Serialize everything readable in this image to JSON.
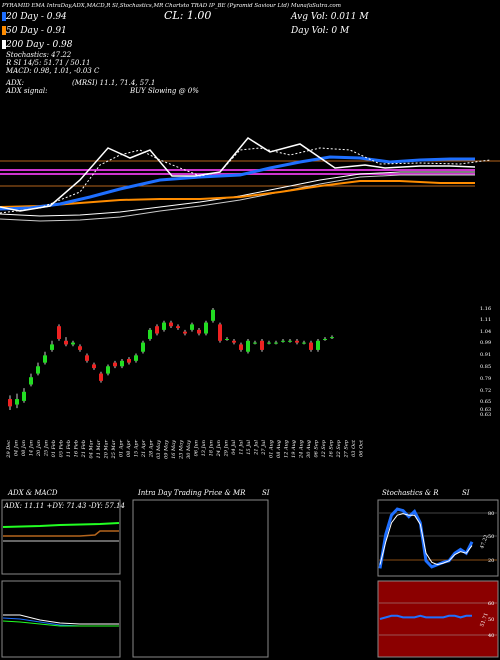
{
  "header": {
    "title_line": "PYRAMID EMA IntraDay,ADX,MACD,R SI,Stochastics,MR Chartsto TRAD IP_BE (Pyramid Saviour Ltd) MunafaSutra.com",
    "ema20": "20 Day - 0.94",
    "ema50": "50 Day - 0.91",
    "ema200": "200 Day - 0.98",
    "close": "CL: 1.00",
    "avg_vol": "Avg Vol: 0.011 M",
    "day_vol": "Day Vol: 0 M",
    "stochastics": "Stochastics: 47.22",
    "rsi": "R SI 14/5: 51.71 / 50.11",
    "macd": "MACD: 0.98, 1.01, -0.03 C",
    "adx": "ADX:",
    "mrsi": "(MRSI) 11.1, 71.4, 57.1",
    "adx_signal": "ADX signal:",
    "buy_slowing": "BUY Slowing @ 0%"
  },
  "colors": {
    "background": "#000000",
    "ema20": "#1e6fff",
    "ema50": "#ff8c00",
    "ema200": "#ffffff",
    "magenta": "#cc33cc",
    "brown": "#b5651d",
    "bull": "#22dd22",
    "bear": "#ee2222",
    "panel_border": "#888888",
    "rsi_band": "#8b0000"
  },
  "chart_data": [
    {
      "type": "candlestick",
      "title": "IntraDay price with EMA",
      "price_axis_ticks": [
        "1.16",
        "1.11",
        "1.04",
        "0.99",
        "0.91",
        "0.85",
        "0.79",
        "0.72",
        "0.65",
        "0.63",
        "0.63"
      ],
      "x_labels": [
        "29 Dec",
        "04 Jan",
        "08 Jan",
        "14 Jan",
        "20 Jan",
        "25 Jan",
        "01 Feb",
        "05 Feb",
        "11 Feb",
        "16 Feb",
        "21 Feb",
        "04 Mar",
        "11 Mar",
        "20 Mar",
        "25 Mar",
        "01 Apr",
        "08 Apr",
        "15 Apr",
        "21 Apr",
        "28 Apr",
        "03 May",
        "09 May",
        "16 May",
        "23 May",
        "30 May",
        "06 Jun",
        "13 Jun",
        "18 Jun",
        "24 Jun",
        "29 Jun",
        "04 Jul",
        "11 Jul",
        "15 Jul",
        "21 Jul",
        "27 Jul",
        "01 Aug",
        "08 Aug",
        "12 Aug",
        "19 Aug",
        "24 Aug",
        "30 Aug",
        "06 Sep",
        "12 Sep",
        "16 Sep",
        "22 Sep",
        "27 Sep",
        "03 Oct",
        "06 Oct"
      ],
      "candles": [
        {
          "o": 0.66,
          "c": 0.62,
          "h": 0.68,
          "l": 0.6
        },
        {
          "o": 0.63,
          "c": 0.66,
          "h": 0.69,
          "l": 0.61
        },
        {
          "o": 0.65,
          "c": 0.7,
          "h": 0.72,
          "l": 0.64
        },
        {
          "o": 0.74,
          "c": 0.78,
          "h": 0.8,
          "l": 0.73
        },
        {
          "o": 0.8,
          "c": 0.84,
          "h": 0.86,
          "l": 0.79
        },
        {
          "o": 0.86,
          "c": 0.9,
          "h": 0.92,
          "l": 0.85
        },
        {
          "o": 0.93,
          "c": 0.96,
          "h": 0.98,
          "l": 0.92
        },
        {
          "o": 1.06,
          "c": 0.99,
          "h": 1.07,
          "l": 0.98
        },
        {
          "o": 0.98,
          "c": 0.96,
          "h": 1.0,
          "l": 0.95
        },
        {
          "o": 0.96,
          "c": 0.97,
          "h": 0.98,
          "l": 0.95
        },
        {
          "o": 0.95,
          "c": 0.93,
          "h": 0.96,
          "l": 0.92
        },
        {
          "o": 0.9,
          "c": 0.87,
          "h": 0.91,
          "l": 0.86
        },
        {
          "o": 0.85,
          "c": 0.83,
          "h": 0.86,
          "l": 0.82
        },
        {
          "o": 0.8,
          "c": 0.76,
          "h": 0.81,
          "l": 0.75
        },
        {
          "o": 0.8,
          "c": 0.84,
          "h": 0.85,
          "l": 0.79
        },
        {
          "o": 0.86,
          "c": 0.84,
          "h": 0.87,
          "l": 0.83
        },
        {
          "o": 0.84,
          "c": 0.87,
          "h": 0.88,
          "l": 0.83
        },
        {
          "o": 0.88,
          "c": 0.86,
          "h": 0.89,
          "l": 0.85
        },
        {
          "o": 0.87,
          "c": 0.9,
          "h": 0.91,
          "l": 0.86
        },
        {
          "o": 0.92,
          "c": 0.97,
          "h": 0.98,
          "l": 0.91
        },
        {
          "o": 0.99,
          "c": 1.04,
          "h": 1.05,
          "l": 0.98
        },
        {
          "o": 1.06,
          "c": 1.02,
          "h": 1.07,
          "l": 1.01
        },
        {
          "o": 1.04,
          "c": 1.08,
          "h": 1.09,
          "l": 1.03
        },
        {
          "o": 1.08,
          "c": 1.06,
          "h": 1.09,
          "l": 1.05
        },
        {
          "o": 1.06,
          "c": 1.05,
          "h": 1.07,
          "l": 1.04
        },
        {
          "o": 1.03,
          "c": 1.02,
          "h": 1.04,
          "l": 1.01
        },
        {
          "o": 1.04,
          "c": 1.07,
          "h": 1.08,
          "l": 1.03
        },
        {
          "o": 1.04,
          "c": 1.02,
          "h": 1.05,
          "l": 1.01
        },
        {
          "o": 1.02,
          "c": 1.08,
          "h": 1.09,
          "l": 1.01
        },
        {
          "o": 1.09,
          "c": 1.15,
          "h": 1.16,
          "l": 1.08
        },
        {
          "o": 1.07,
          "c": 0.98,
          "h": 1.08,
          "l": 0.97
        },
        {
          "o": 0.99,
          "c": 0.99,
          "h": 1.0,
          "l": 0.98
        },
        {
          "o": 0.98,
          "c": 0.97,
          "h": 0.99,
          "l": 0.96
        },
        {
          "o": 0.96,
          "c": 0.93,
          "h": 0.97,
          "l": 0.92
        },
        {
          "o": 0.92,
          "c": 0.98,
          "h": 0.99,
          "l": 0.91
        },
        {
          "o": 0.97,
          "c": 0.97,
          "h": 0.98,
          "l": 0.96
        },
        {
          "o": 0.98,
          "c": 0.93,
          "h": 0.99,
          "l": 0.92
        },
        {
          "o": 0.97,
          "c": 0.97,
          "h": 0.98,
          "l": 0.96
        },
        {
          "o": 0.97,
          "c": 0.97,
          "h": 0.98,
          "l": 0.96
        },
        {
          "o": 0.98,
          "c": 0.98,
          "h": 0.99,
          "l": 0.97
        },
        {
          "o": 0.98,
          "c": 0.98,
          "h": 0.99,
          "l": 0.97
        },
        {
          "o": 0.98,
          "c": 0.97,
          "h": 0.99,
          "l": 0.96
        },
        {
          "o": 0.97,
          "c": 0.97,
          "h": 0.98,
          "l": 0.96
        },
        {
          "o": 0.97,
          "c": 0.93,
          "h": 0.98,
          "l": 0.92
        },
        {
          "o": 0.93,
          "c": 0.98,
          "h": 0.99,
          "l": 0.92
        },
        {
          "o": 0.99,
          "c": 0.99,
          "h": 1.0,
          "l": 0.98
        },
        {
          "o": 1.0,
          "c": 1.0,
          "h": 1.01,
          "l": 0.99
        }
      ]
    },
    {
      "type": "line",
      "title": "ADX & MACD",
      "header_text": "ADX: 11.11 +DY: 71.43 -DY: 57.14",
      "series": [
        {
          "name": "+DY",
          "values": [
            67,
            67,
            67,
            67,
            68,
            68,
            68,
            68,
            68,
            68,
            69,
            69,
            69,
            69,
            70,
            70,
            70,
            70,
            71,
            71,
            71,
            71,
            71
          ]
        },
        {
          "name": "-DY",
          "values": [
            58,
            58,
            58,
            58,
            58,
            58,
            58,
            58,
            58,
            58,
            58,
            58,
            58,
            58,
            58,
            58,
            58,
            58,
            58,
            57,
            57,
            57,
            57
          ]
        },
        {
          "name": "ADX",
          "values": [
            12,
            12,
            12,
            12,
            12,
            12,
            12,
            12,
            12,
            12,
            11,
            11,
            11,
            11,
            11,
            11,
            11,
            11,
            11,
            11,
            11,
            11,
            11
          ]
        }
      ]
    },
    {
      "type": "line",
      "title": "Intra Day Trading Price & MRSI",
      "series": []
    },
    {
      "type": "line",
      "title": "Stochastics & RSI",
      "stoch_ticks": [
        "80",
        "50",
        "20"
      ],
      "rsi_ticks": [
        "60",
        "50",
        "40"
      ],
      "rsi_label": "51.71",
      "stoch_label": "47.22",
      "series": [
        {
          "name": "%K",
          "values": [
            10,
            55,
            80,
            88,
            86,
            78,
            85,
            70,
            20,
            12,
            15,
            18,
            20,
            30,
            35,
            30,
            45
          ]
        },
        {
          "name": "%D",
          "values": [
            15,
            45,
            70,
            80,
            82,
            80,
            80,
            68,
            30,
            18,
            15,
            17,
            20,
            28,
            32,
            30,
            40
          ]
        }
      ],
      "rsi_values": [
        50,
        51,
        52,
        52,
        51,
        51,
        51,
        52,
        51,
        51,
        51,
        51,
        52,
        52,
        51,
        52,
        52
      ]
    }
  ],
  "panel_titles": {
    "adx": "ADX & MACD",
    "intra": "Intra Day Trading Price & MR",
    "intra_si": "SI",
    "stoch": "Stochastics & R",
    "stoch_si": "SI"
  }
}
